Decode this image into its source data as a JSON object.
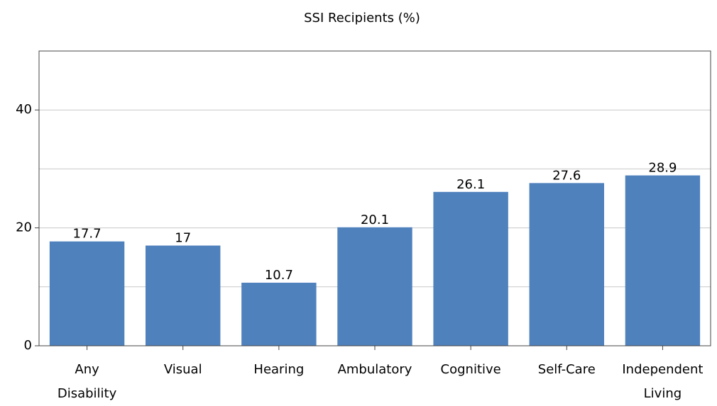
{
  "chart_data": {
    "type": "bar",
    "title": "SSI Recipients (%)",
    "categories": [
      [
        "Any",
        "Disability"
      ],
      [
        "Visual"
      ],
      [
        "Hearing"
      ],
      [
        "Ambulatory"
      ],
      [
        "Cognitive"
      ],
      [
        "Self-Care"
      ],
      [
        "Independent",
        "Living"
      ]
    ],
    "values": [
      17.7,
      17,
      10.7,
      20.1,
      26.1,
      27.6,
      28.9
    ],
    "color": "#4f81bd",
    "ylim": [
      0,
      50
    ],
    "yticks": [
      0,
      20,
      40
    ],
    "minor_yticks": [
      10,
      30
    ],
    "grid": true
  }
}
